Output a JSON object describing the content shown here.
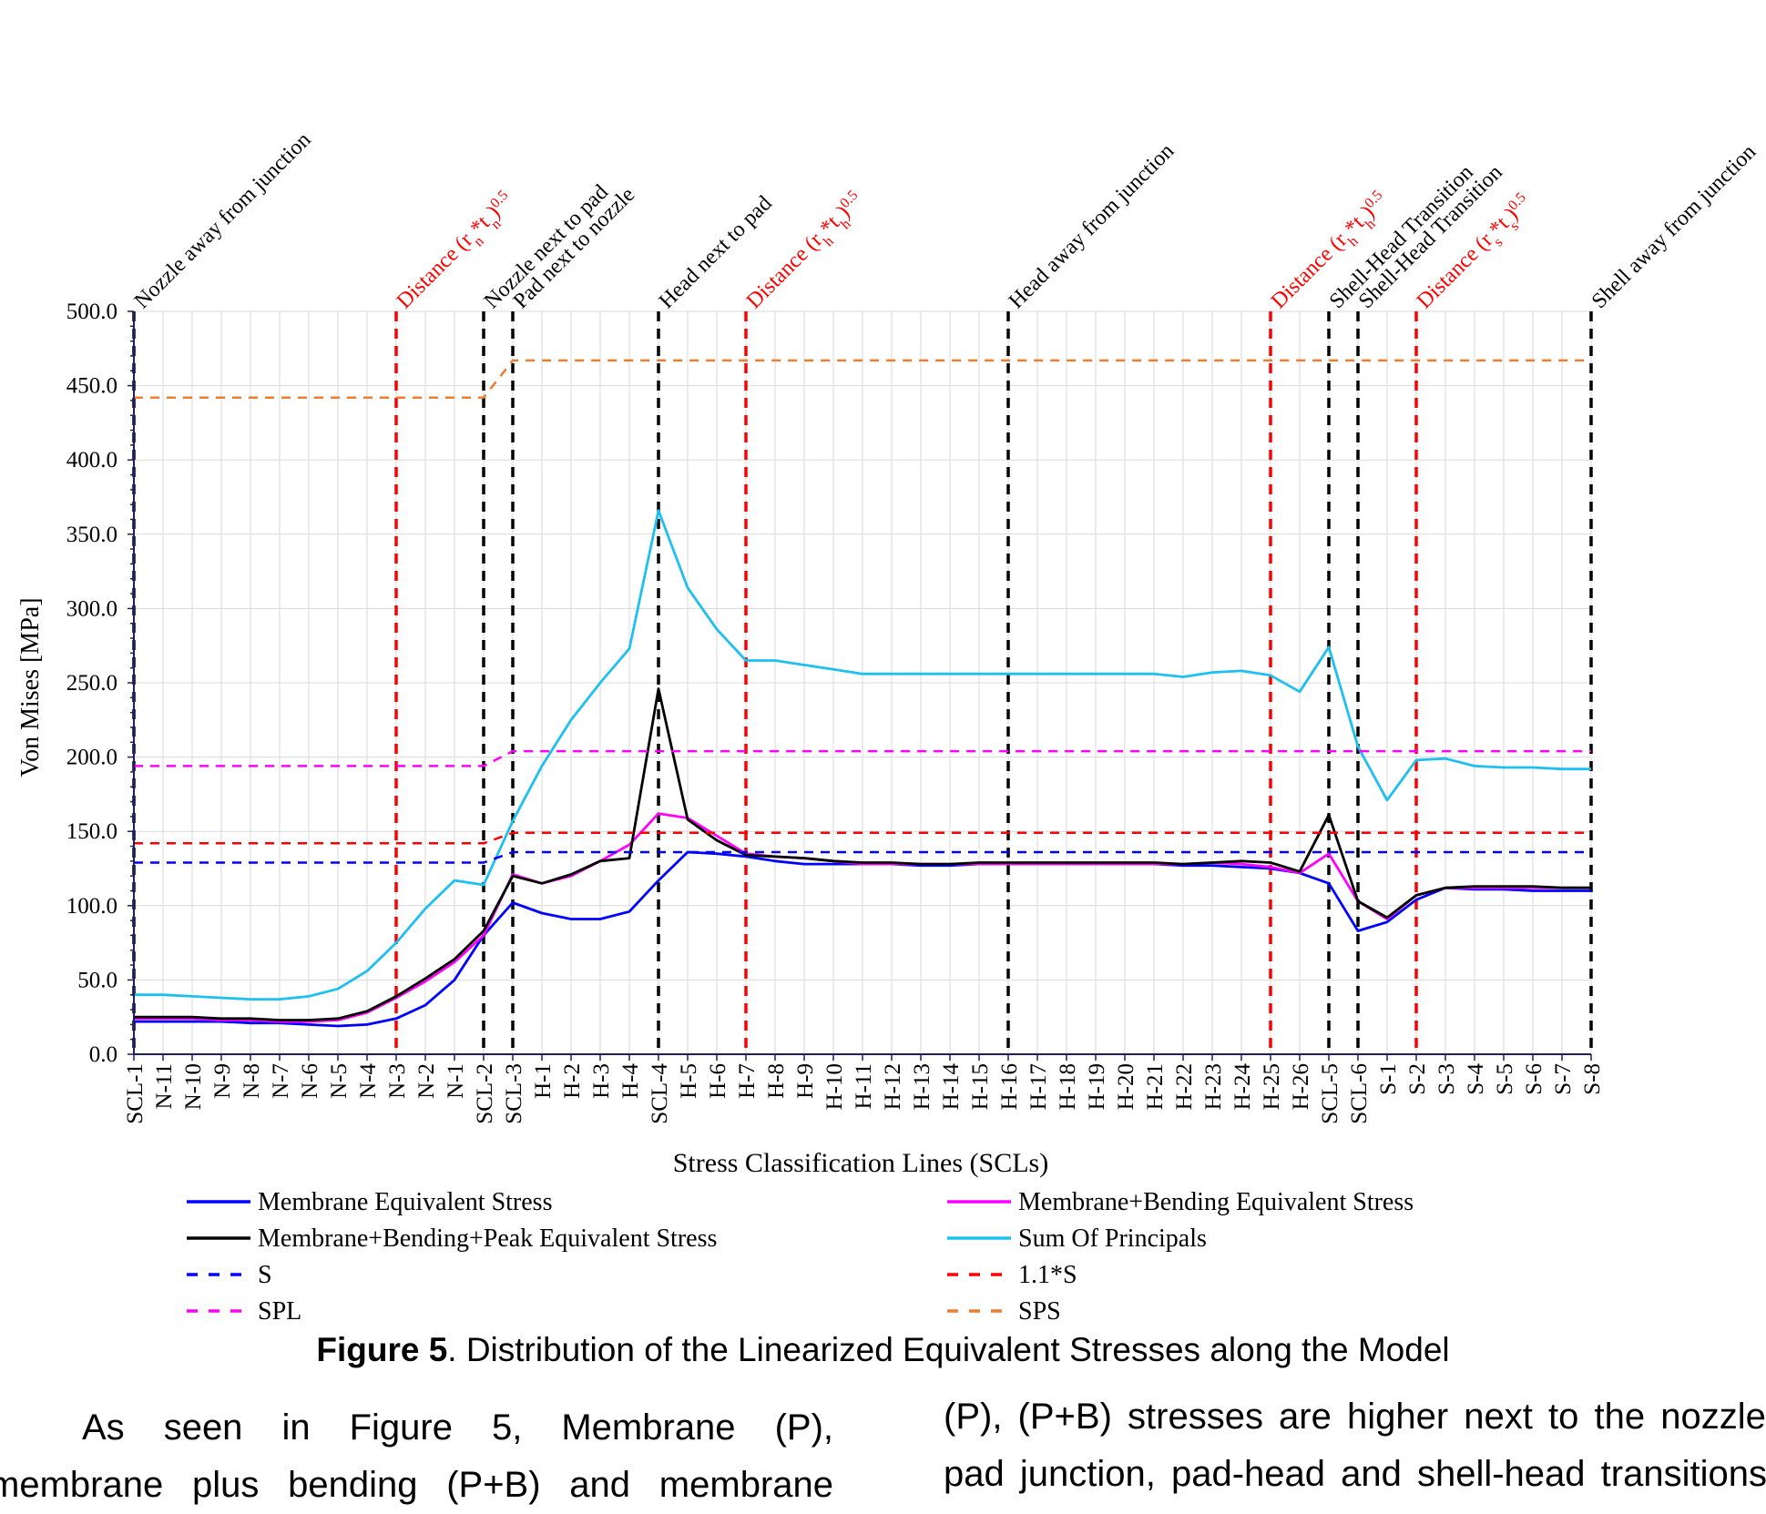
{
  "chart_data": {
    "type": "line",
    "ylabel": "Von Mises [MPa]",
    "xlabel": "Stress Classification Lines (SCLs)",
    "ylim": [
      0,
      500
    ],
    "yticks": [
      "0.0",
      "50.0",
      "100.0",
      "150.0",
      "200.0",
      "250.0",
      "300.0",
      "350.0",
      "400.0",
      "450.0",
      "500.0"
    ],
    "grid": true,
    "legend_position": "bottom",
    "categories": [
      "SCL-1",
      "N-11",
      "N-10",
      "N-9",
      "N-8",
      "N-7",
      "N-6",
      "N-5",
      "N-4",
      "N-3",
      "N-2",
      "N-1",
      "SCL-2",
      "SCL-3",
      "H-1",
      "H-2",
      "H-3",
      "H-4",
      "SCL-4",
      "H-5",
      "H-6",
      "H-7",
      "H-8",
      "H-9",
      "H-10",
      "H-11",
      "H-12",
      "H-13",
      "H-14",
      "H-15",
      "H-16",
      "H-17",
      "H-18",
      "H-19",
      "H-20",
      "H-21",
      "H-22",
      "H-23",
      "H-24",
      "H-25",
      "H-26",
      "SCL-5",
      "SCL-6",
      "S-1",
      "S-2",
      "S-3",
      "S-4",
      "S-5",
      "S-6",
      "S-7",
      "S-8"
    ],
    "series": [
      {
        "name": "Membrane Equivalent Stress",
        "color": "#0000ff",
        "dash": "solid",
        "values": [
          22,
          22,
          22,
          22,
          21,
          21,
          20,
          19,
          20,
          24,
          33,
          50,
          80,
          102,
          95,
          91,
          91,
          96,
          117,
          136,
          135,
          133,
          130,
          128,
          128,
          128,
          128,
          127,
          127,
          128,
          128,
          128,
          128,
          128,
          128,
          128,
          127,
          127,
          126,
          125,
          122,
          115,
          83,
          89,
          104,
          112,
          111,
          111,
          110,
          110,
          110
        ]
      },
      {
        "name": "Membrane+Bending Equivalent Stress",
        "color": "#ff00ff",
        "dash": "solid",
        "values": [
          24,
          24,
          24,
          23,
          23,
          22,
          22,
          23,
          28,
          38,
          49,
          62,
          80,
          121,
          115,
          120,
          130,
          141,
          162,
          159,
          147,
          135,
          133,
          132,
          130,
          128,
          128,
          128,
          128,
          128,
          128,
          128,
          128,
          128,
          128,
          128,
          128,
          129,
          128,
          126,
          122,
          135,
          103,
          91,
          107,
          112,
          112,
          112,
          112,
          112,
          112
        ]
      },
      {
        "name": "Membrane+Bending+Peak Equivalent Stress",
        "color": "#000000",
        "dash": "solid",
        "values": [
          25,
          25,
          25,
          24,
          24,
          23,
          23,
          24,
          29,
          39,
          51,
          64,
          83,
          120,
          115,
          121,
          130,
          132,
          246,
          158,
          144,
          134,
          133,
          132,
          130,
          129,
          129,
          128,
          128,
          129,
          129,
          129,
          129,
          129,
          129,
          129,
          128,
          129,
          130,
          129,
          123,
          161,
          103,
          92,
          107,
          112,
          113,
          113,
          113,
          112,
          112
        ]
      },
      {
        "name": "Sum Of Principals",
        "color": "#1ec0f0",
        "dash": "solid",
        "values": [
          40,
          40,
          39,
          38,
          37,
          37,
          39,
          44,
          56,
          75,
          98,
          117,
          114,
          157,
          194,
          225,
          250,
          273,
          366,
          314,
          286,
          265,
          265,
          262,
          259,
          256,
          256,
          256,
          256,
          256,
          256,
          256,
          256,
          256,
          256,
          256,
          254,
          257,
          258,
          255,
          244,
          274,
          207,
          171,
          198,
          199,
          194,
          193,
          193,
          192,
          192
        ]
      },
      {
        "name": "S",
        "color": "#0000ff",
        "dash": "dashed",
        "values": [
          129,
          129,
          129,
          129,
          129,
          129,
          129,
          129,
          129,
          129,
          129,
          129,
          129,
          136,
          136,
          136,
          136,
          136,
          136,
          136,
          136,
          136,
          136,
          136,
          136,
          136,
          136,
          136,
          136,
          136,
          136,
          136,
          136,
          136,
          136,
          136,
          136,
          136,
          136,
          136,
          136,
          136,
          136,
          136,
          136,
          136,
          136,
          136,
          136,
          136,
          136
        ]
      },
      {
        "name": "1.1*S",
        "color": "#ff0000",
        "dash": "dashed",
        "values": [
          142,
          142,
          142,
          142,
          142,
          142,
          142,
          142,
          142,
          142,
          142,
          142,
          142,
          149,
          149,
          149,
          149,
          149,
          149,
          149,
          149,
          149,
          149,
          149,
          149,
          149,
          149,
          149,
          149,
          149,
          149,
          149,
          149,
          149,
          149,
          149,
          149,
          149,
          149,
          149,
          149,
          149,
          149,
          149,
          149,
          149,
          149,
          149,
          149,
          149,
          149
        ]
      },
      {
        "name": "SPL",
        "color": "#ff00ff",
        "dash": "dashed",
        "values": [
          194,
          194,
          194,
          194,
          194,
          194,
          194,
          194,
          194,
          194,
          194,
          194,
          194,
          204,
          204,
          204,
          204,
          204,
          204,
          204,
          204,
          204,
          204,
          204,
          204,
          204,
          204,
          204,
          204,
          204,
          204,
          204,
          204,
          204,
          204,
          204,
          204,
          204,
          204,
          204,
          204,
          204,
          204,
          204,
          204,
          204,
          204,
          204,
          204,
          204,
          204
        ]
      },
      {
        "name": "SPS",
        "color": "#ed7d31",
        "dash": "dashed",
        "values": [
          442,
          442,
          442,
          442,
          442,
          442,
          442,
          442,
          442,
          442,
          442,
          442,
          442,
          467,
          467,
          467,
          467,
          467,
          467,
          467,
          467,
          467,
          467,
          467,
          467,
          467,
          467,
          467,
          467,
          467,
          467,
          467,
          467,
          467,
          467,
          467,
          467,
          467,
          467,
          467,
          467,
          467,
          467,
          467,
          467,
          467,
          467,
          467,
          467,
          467,
          467
        ]
      }
    ],
    "annotations": [
      {
        "at": "SCL-1",
        "color": "#000000",
        "text": "Nozzle away  from junction"
      },
      {
        "at": "N-3",
        "color": "#ff0000",
        "text": "Distance (r",
        "sub1": "n",
        "mid": "*t",
        "sub2": "n",
        "sup": "0.5"
      },
      {
        "at": "SCL-2",
        "color": "#000000",
        "text": "Nozzle next to pad"
      },
      {
        "at": "SCL-3",
        "color": "#000000",
        "text": "Pad next to nozzle"
      },
      {
        "at": "SCL-4",
        "color": "#000000",
        "text": "Head next to pad"
      },
      {
        "at": "H-7",
        "color": "#ff0000",
        "text": "Distance (r",
        "sub1": "h",
        "mid": "*t",
        "sub2": "h",
        "sup": "0.5"
      },
      {
        "at": "H-16",
        "color": "#000000",
        "text": "Head away  from junction"
      },
      {
        "at": "H-25",
        "color": "#ff0000",
        "text": "Distance (r",
        "sub1": "h",
        "mid": "*t",
        "sub2": "h",
        "sup": "0.5"
      },
      {
        "at": "SCL-5",
        "color": "#000000",
        "text": "Shell-Head Transition"
      },
      {
        "at": "SCL-6",
        "color": "#000000",
        "text": "Shell-Head Transition"
      },
      {
        "at": "S-2",
        "color": "#ff0000",
        "text": "Distance (r",
        "sub1": "s",
        "mid": "*t",
        "sub2": "s",
        "sup": "0.5"
      },
      {
        "at": "S-8",
        "color": "#000000",
        "text": "Shell away  from junction"
      }
    ]
  },
  "caption": {
    "label": "Figure 5",
    "text": ". Distribution of the Linearized Equivalent Stresses along the Model"
  },
  "body_text": {
    "left_lines": [
      "As seen in Figure 5, Membrane (P),",
      "membrane plus bending (P+B) and membrane"
    ],
    "right_lines": [
      "(P), (P+B) stresses are higher next to the nozzle",
      "pad junction, pad-head and shell-head transitions"
    ]
  }
}
